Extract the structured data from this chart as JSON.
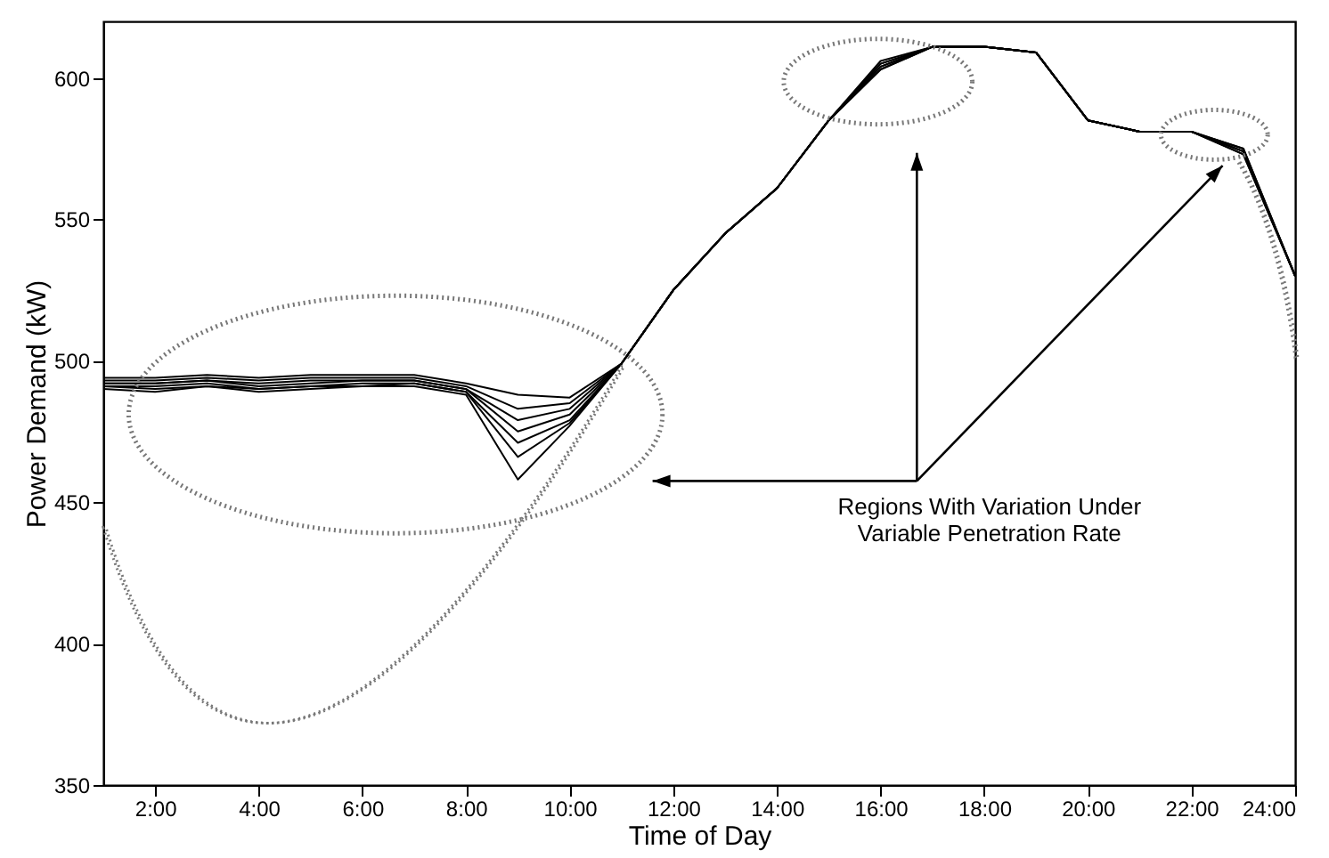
{
  "chart_data": {
    "type": "line",
    "xlabel": "Time of Day",
    "ylabel": "Power Demand (kW)",
    "x": [
      1,
      2,
      3,
      4,
      5,
      6,
      7,
      8,
      9,
      10,
      11,
      12,
      13,
      14,
      15,
      16,
      17,
      18,
      19,
      20,
      21,
      22,
      23,
      24
    ],
    "xlim": [
      1,
      24
    ],
    "ylim": [
      350,
      620
    ],
    "xticks": [
      {
        "value": 2,
        "label": "2:00"
      },
      {
        "value": 4,
        "label": "4:00"
      },
      {
        "value": 6,
        "label": "6:00"
      },
      {
        "value": 8,
        "label": "8:00"
      },
      {
        "value": 10,
        "label": "10:00"
      },
      {
        "value": 12,
        "label": "12:00"
      },
      {
        "value": 14,
        "label": "14:00"
      },
      {
        "value": 16,
        "label": "16:00"
      },
      {
        "value": 18,
        "label": "18:00"
      },
      {
        "value": 20,
        "label": "20:00"
      },
      {
        "value": 22,
        "label": "22:00"
      },
      {
        "value": 24,
        "label": "24:00"
      }
    ],
    "yticks": [
      350,
      400,
      450,
      500,
      550,
      600
    ],
    "grid": false,
    "annotations": [
      "Regions With Variation Under\nVariable Penetration Rate"
    ],
    "series": [
      {
        "color": "#000000",
        "values": [
          494,
          494,
          495,
          494,
          495,
          495,
          495,
          492,
          488,
          487,
          499,
          525,
          545,
          561,
          585,
          606,
          611,
          611,
          609,
          585,
          581,
          581,
          575,
          530
        ]
      },
      {
        "color": "#000000",
        "values": [
          493,
          493,
          494,
          493,
          494,
          494,
          494,
          491,
          483,
          485,
          499,
          525,
          545,
          561,
          585,
          605,
          611,
          611,
          609,
          585,
          581,
          581,
          575,
          530
        ]
      },
      {
        "color": "#000000",
        "values": [
          492,
          492,
          493,
          492,
          493,
          493,
          493,
          490,
          479,
          483,
          499,
          525,
          545,
          561,
          585,
          605,
          611,
          611,
          609,
          585,
          581,
          581,
          574,
          530
        ]
      },
      {
        "color": "#000000",
        "values": [
          492,
          492,
          493,
          491,
          492,
          493,
          493,
          490,
          475,
          481,
          499,
          525,
          545,
          561,
          585,
          604,
          611,
          611,
          609,
          585,
          581,
          581,
          574,
          530
        ]
      },
      {
        "color": "#000000",
        "values": [
          491,
          491,
          492,
          490,
          491,
          492,
          492,
          489,
          471,
          479,
          499,
          525,
          545,
          561,
          585,
          604,
          611,
          611,
          609,
          585,
          581,
          581,
          574,
          530
        ]
      },
      {
        "color": "#000000",
        "values": [
          491,
          490,
          491,
          490,
          491,
          491,
          492,
          489,
          466,
          478,
          499,
          525,
          545,
          561,
          585,
          603,
          611,
          611,
          609,
          585,
          581,
          581,
          573,
          530
        ]
      },
      {
        "color": "#000000",
        "values": [
          490,
          489,
          491,
          489,
          490,
          491,
          491,
          488,
          458,
          477,
          499,
          525,
          545,
          561,
          585,
          603,
          611,
          611,
          609,
          585,
          581,
          581,
          573,
          530
        ]
      }
    ]
  }
}
